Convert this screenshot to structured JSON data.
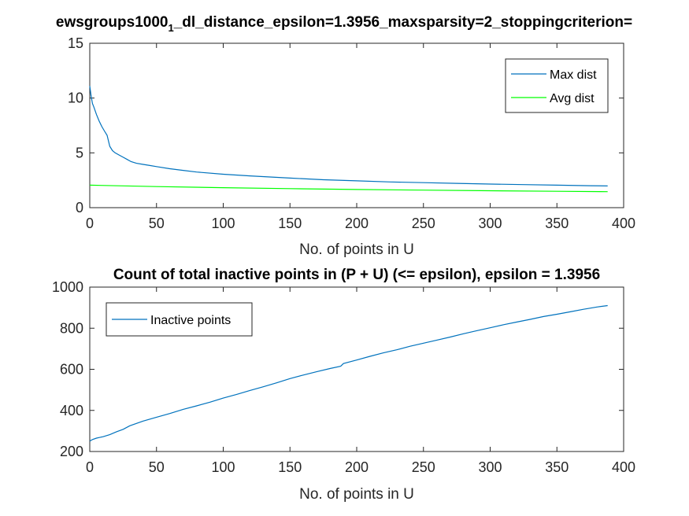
{
  "chart_data": [
    {
      "type": "line",
      "title": "ewsgroups1000",
      "title_sub": "1",
      "title_rest": "_dl_distance_epsilon=1.3956_maxsparsity=2_stoppingcriterion=",
      "xlabel": "No. of points in U",
      "ylabel": "",
      "xlim": [
        0,
        400
      ],
      "ylim": [
        0,
        15
      ],
      "xticks": [
        0,
        50,
        100,
        150,
        200,
        250,
        300,
        350,
        400
      ],
      "yticks": [
        0,
        5,
        10,
        15
      ],
      "grid": false,
      "legend_position": "top-right",
      "series": [
        {
          "name": "Max dist",
          "color": "#0072BD",
          "x": [
            0,
            1,
            2,
            3,
            5,
            7,
            9,
            11,
            13,
            15,
            17,
            19,
            22,
            25,
            28,
            31,
            35,
            40,
            45,
            50,
            60,
            70,
            80,
            100,
            120,
            150,
            175,
            200,
            225,
            250,
            275,
            300,
            325,
            350,
            375,
            388
          ],
          "y": [
            11.1,
            10.2,
            9.5,
            9.2,
            8.5,
            7.9,
            7.4,
            7.0,
            6.6,
            5.6,
            5.2,
            5.0,
            4.8,
            4.6,
            4.4,
            4.2,
            4.05,
            3.95,
            3.85,
            3.75,
            3.55,
            3.4,
            3.25,
            3.05,
            2.9,
            2.7,
            2.55,
            2.45,
            2.35,
            2.28,
            2.22,
            2.15,
            2.1,
            2.05,
            2.0,
            1.98
          ]
        },
        {
          "name": "Avg dist",
          "color": "#00FF00",
          "x": [
            0,
            50,
            100,
            150,
            200,
            250,
            300,
            350,
            388
          ],
          "y": [
            2.05,
            1.92,
            1.82,
            1.74,
            1.66,
            1.6,
            1.54,
            1.49,
            1.46
          ]
        }
      ]
    },
    {
      "type": "line",
      "title": "Count of total inactive points in (P + U) (<= epsilon), epsilon = 1.3956",
      "xlabel": "No. of points in U",
      "ylabel": "",
      "xlim": [
        0,
        400
      ],
      "ylim": [
        200,
        1000
      ],
      "xticks": [
        0,
        50,
        100,
        150,
        200,
        250,
        300,
        350,
        400
      ],
      "yticks": [
        200,
        400,
        600,
        800,
        1000
      ],
      "grid": false,
      "legend_position": "top-left",
      "series": [
        {
          "name": "Inactive points",
          "color": "#0072BD",
          "x": [
            0,
            2,
            5,
            10,
            15,
            20,
            25,
            30,
            40,
            50,
            60,
            70,
            80,
            90,
            100,
            110,
            120,
            130,
            140,
            150,
            160,
            170,
            180,
            188,
            190,
            200,
            210,
            220,
            230,
            240,
            250,
            260,
            270,
            280,
            290,
            300,
            310,
            320,
            330,
            340,
            350,
            360,
            370,
            380,
            388
          ],
          "y": [
            250,
            258,
            265,
            272,
            282,
            296,
            308,
            325,
            348,
            367,
            385,
            405,
            422,
            440,
            460,
            478,
            497,
            515,
            534,
            555,
            572,
            588,
            604,
            615,
            628,
            645,
            663,
            680,
            695,
            712,
            727,
            742,
            757,
            773,
            788,
            802,
            817,
            830,
            843,
            857,
            868,
            880,
            892,
            903,
            910
          ]
        }
      ]
    }
  ]
}
